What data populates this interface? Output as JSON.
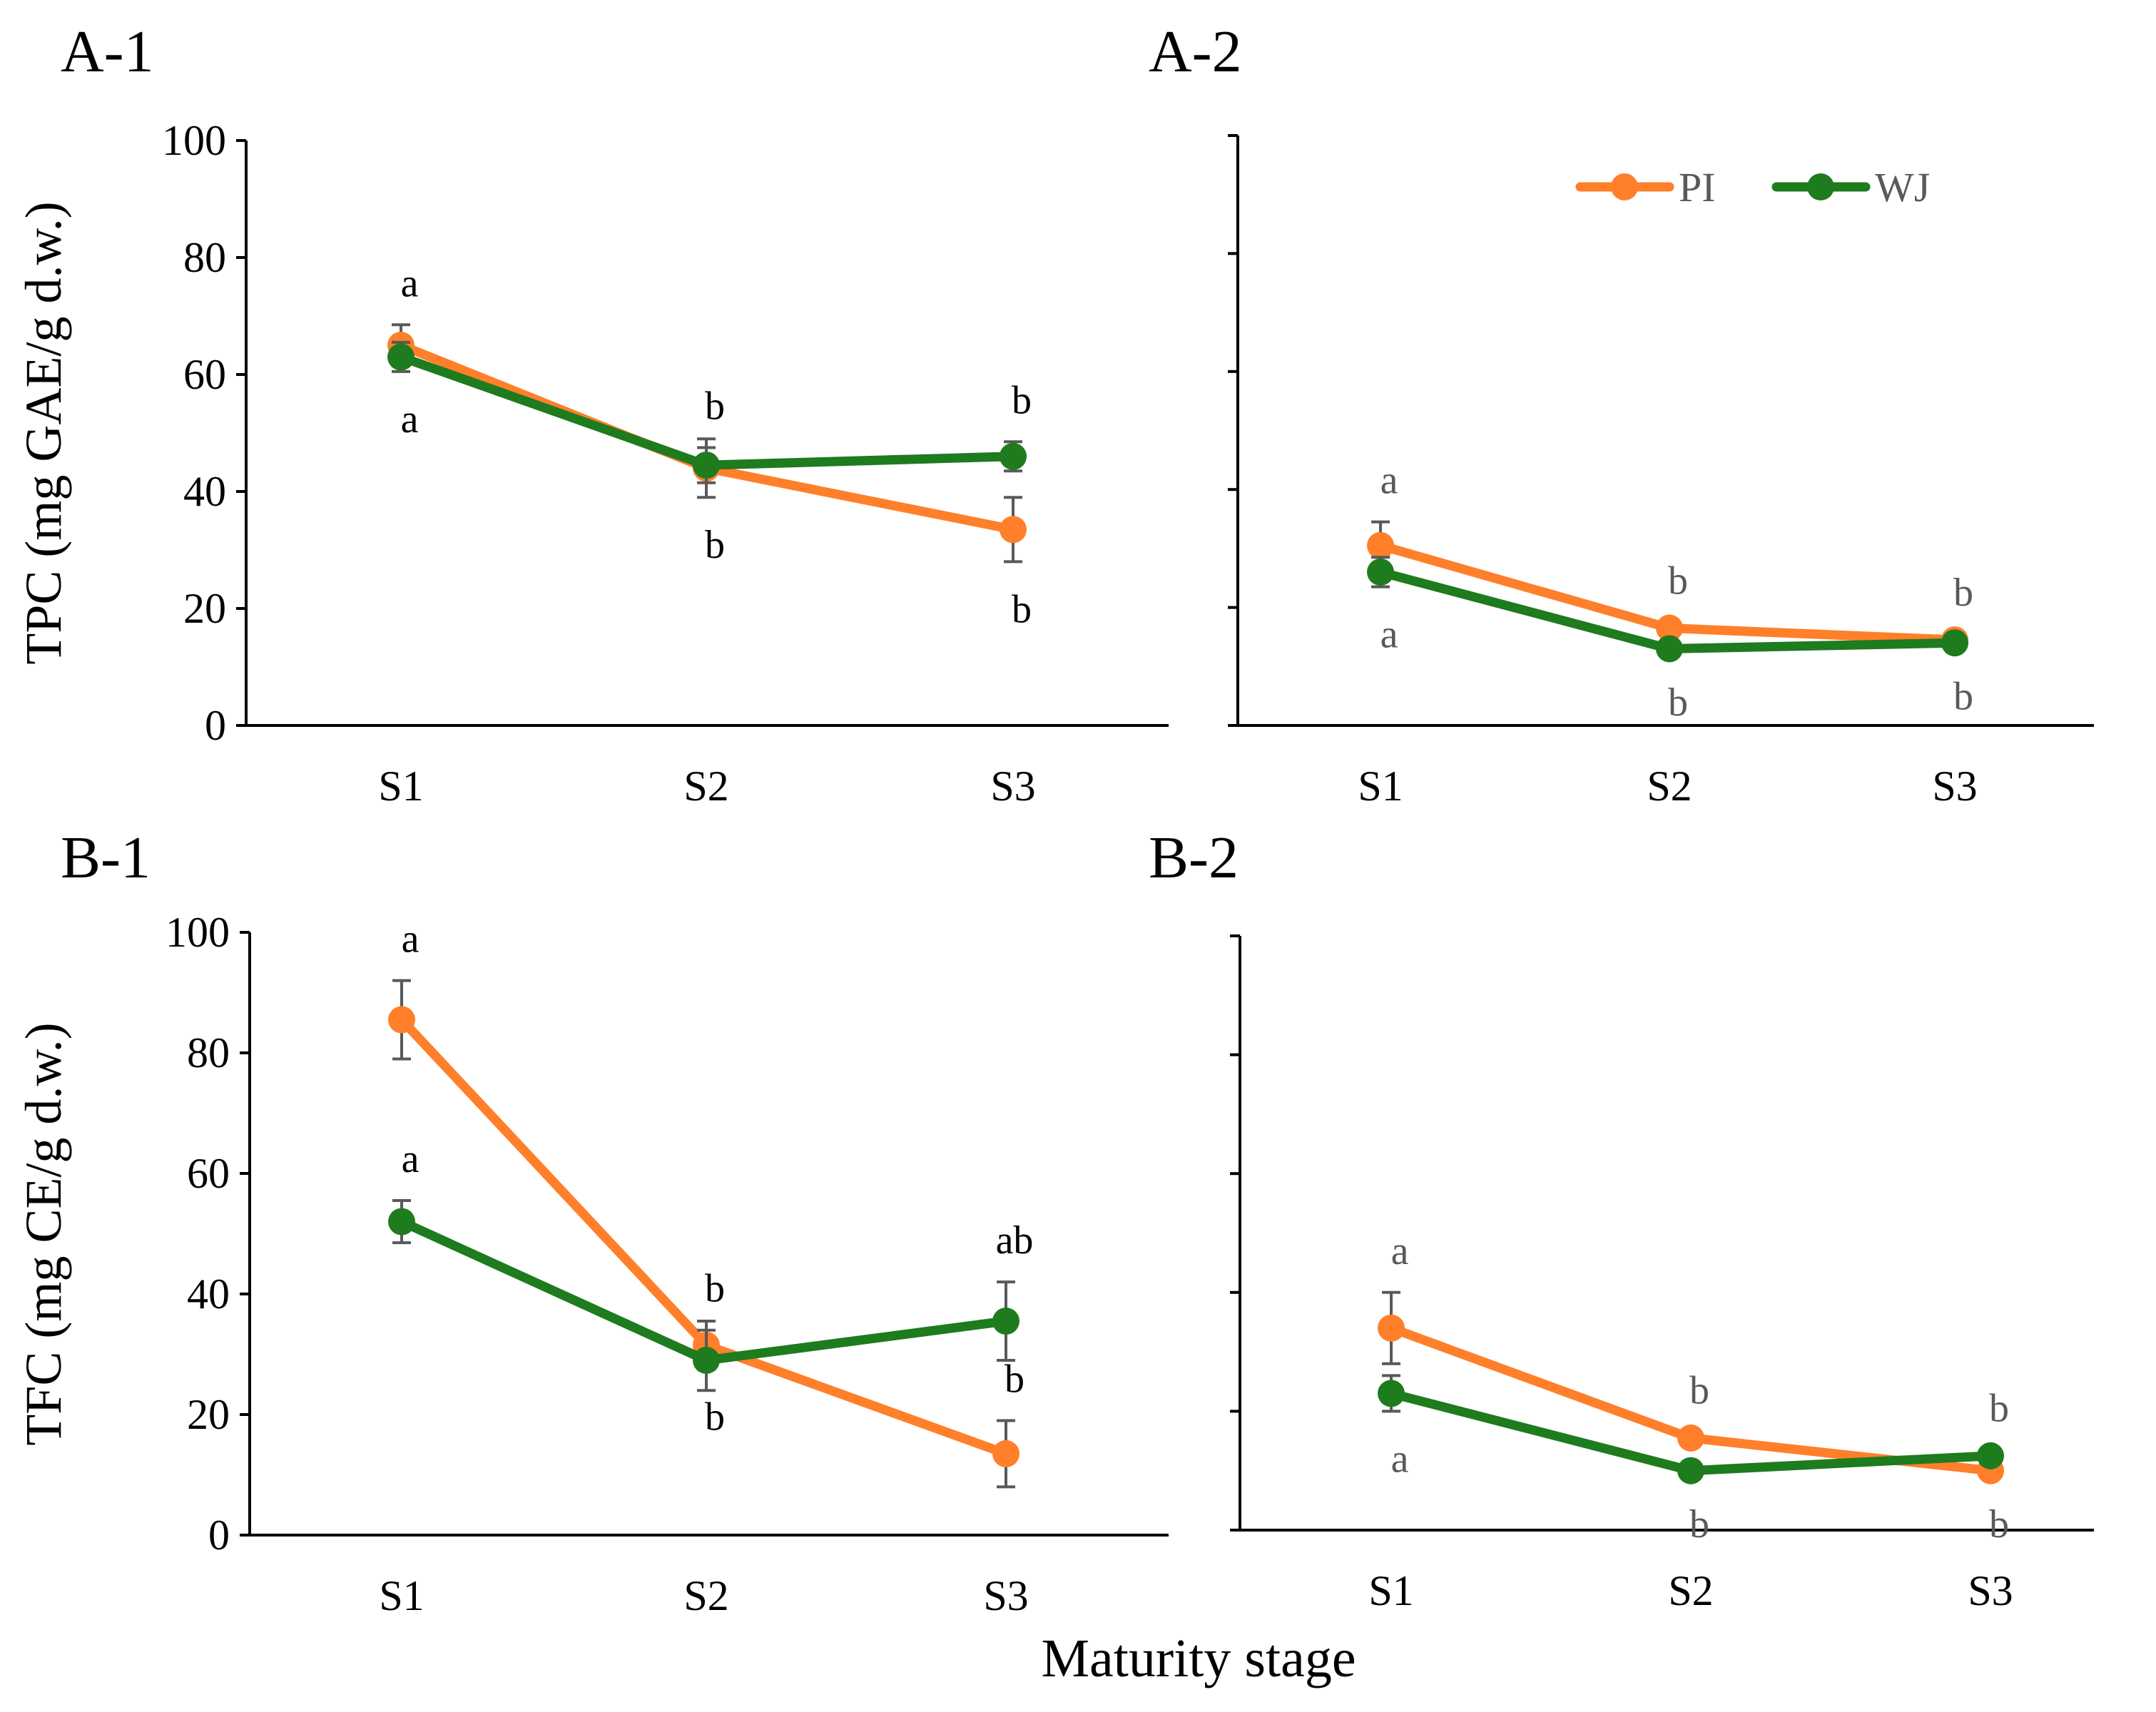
{
  "figure": {
    "xlabel": "Maturity stage"
  },
  "legend": {
    "placement": "top-right of panel A-2",
    "entries": [
      {
        "label": "PI",
        "color": "#FF7F2A"
      },
      {
        "label": "WJ",
        "color": "#1E7B1E"
      }
    ]
  },
  "colors": {
    "PI": "#FF7F2A",
    "WJ": "#1E7B1E",
    "axis": "#000000",
    "letter": "#000000",
    "letter_muted": "#595959",
    "error_bar": "#595959"
  },
  "chart_data": [
    {
      "panel": "A-1",
      "type": "line",
      "categories": [
        "S1",
        "S2",
        "S3"
      ],
      "ylabel": "TPC (mg GAE/g d.w.)",
      "ylim": [
        0,
        100
      ],
      "yticks": [
        0,
        20,
        40,
        60,
        80,
        100
      ],
      "show_ytick_labels": true,
      "grid": false,
      "series": [
        {
          "name": "PI",
          "values": [
            65,
            44,
            33.5
          ],
          "errors": [
            3.5,
            5,
            5.5
          ],
          "letters": [
            "a",
            "b",
            "b"
          ],
          "letter_pos": [
            "above",
            "below",
            "below"
          ]
        },
        {
          "name": "WJ",
          "values": [
            63,
            44.5,
            46
          ],
          "errors": [
            2.5,
            3,
            2.5
          ],
          "letters": [
            "a",
            "b",
            "b"
          ],
          "letter_pos": [
            "below",
            "above",
            "above"
          ]
        }
      ]
    },
    {
      "panel": "A-2",
      "type": "line",
      "categories": [
        "S1",
        "S2",
        "S3"
      ],
      "ylabel": "",
      "ylim": [
        0,
        100
      ],
      "yticks": [
        0,
        20,
        40,
        60,
        80,
        100
      ],
      "show_ytick_labels": false,
      "grid": false,
      "series": [
        {
          "name": "PI",
          "values": [
            30.5,
            16.5,
            14.5
          ],
          "errors": [
            4,
            1,
            1
          ],
          "letters": [
            "a",
            "b",
            "b"
          ],
          "letter_pos": [
            "above",
            "above",
            "above"
          ]
        },
        {
          "name": "WJ",
          "values": [
            26,
            13,
            14
          ],
          "errors": [
            2.5,
            1,
            1
          ],
          "letters": [
            "a",
            "b",
            "b"
          ],
          "letter_pos": [
            "below",
            "below",
            "below"
          ]
        }
      ]
    },
    {
      "panel": "B-1",
      "type": "line",
      "categories": [
        "S1",
        "S2",
        "S3"
      ],
      "ylabel": "TFC (mg CE/g d.w.)",
      "ylim": [
        0,
        100
      ],
      "yticks": [
        0,
        20,
        40,
        60,
        80,
        100
      ],
      "show_ytick_labels": true,
      "grid": false,
      "series": [
        {
          "name": "PI",
          "values": [
            85.5,
            31.5,
            13.5
          ],
          "errors": [
            6.5,
            4,
            5.5
          ],
          "letters": [
            "a",
            "b",
            "b"
          ],
          "letter_pos": [
            "above",
            "below",
            "above"
          ]
        },
        {
          "name": "WJ",
          "values": [
            52,
            29,
            35.5
          ],
          "errors": [
            3.5,
            5,
            6.5
          ],
          "letters": [
            "a",
            "b",
            "ab"
          ],
          "letter_pos": [
            "above",
            "above",
            "above"
          ]
        }
      ]
    },
    {
      "panel": "B-2",
      "type": "line",
      "categories": [
        "S1",
        "S2",
        "S3"
      ],
      "ylabel": "",
      "ylim": [
        0,
        100
      ],
      "yticks": [
        0,
        20,
        40,
        60,
        80,
        100
      ],
      "show_ytick_labels": false,
      "grid": false,
      "series": [
        {
          "name": "PI",
          "values": [
            34,
            15.5,
            10
          ],
          "errors": [
            6,
            1,
            1
          ],
          "letters": [
            "a",
            "b",
            "b"
          ],
          "letter_pos": [
            "above",
            "above",
            "below"
          ]
        },
        {
          "name": "WJ",
          "values": [
            23,
            10,
            12.5
          ],
          "errors": [
            3,
            1,
            1
          ],
          "letters": [
            "a",
            "b",
            "b"
          ],
          "letter_pos": [
            "below",
            "below",
            "above"
          ]
        }
      ]
    }
  ]
}
